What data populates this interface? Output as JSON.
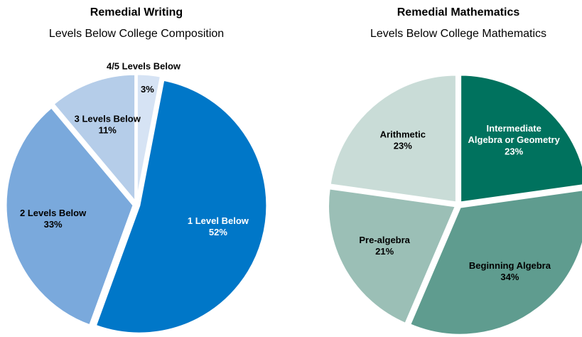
{
  "chart_data": [
    {
      "type": "pie",
      "title": "Remedial Writing",
      "subtitle": "Levels Below College Composition",
      "categories": [
        "4/5 Levels Below",
        "1 Level Below",
        "2 Levels Below",
        "3 Levels Below"
      ],
      "values": [
        3,
        52,
        33,
        11
      ],
      "value_labels": [
        "3%",
        "52%",
        "33%",
        "11%"
      ],
      "colors": [
        "#d6e3f4",
        "#0077c8",
        "#7aa9dc",
        "#b5cde9"
      ],
      "label_colors": [
        "#000000",
        "#ffffff",
        "#000000",
        "#000000"
      ]
    },
    {
      "type": "pie",
      "title": "Remedial Mathematics",
      "subtitle": "Levels Below College Mathematics",
      "categories": [
        "Intermediate Algebra or Geometry",
        "Beginning Algebra",
        "Pre-algebra",
        "Arithmetic"
      ],
      "values": [
        23,
        34,
        21,
        23
      ],
      "value_labels": [
        "23%",
        "34%",
        "21%",
        "23%"
      ],
      "colors": [
        "#00725e",
        "#5f9c8f",
        "#9bbfb6",
        "#c9dcd7"
      ],
      "label_colors": [
        "#ffffff",
        "#000000",
        "#000000",
        "#000000"
      ]
    }
  ]
}
